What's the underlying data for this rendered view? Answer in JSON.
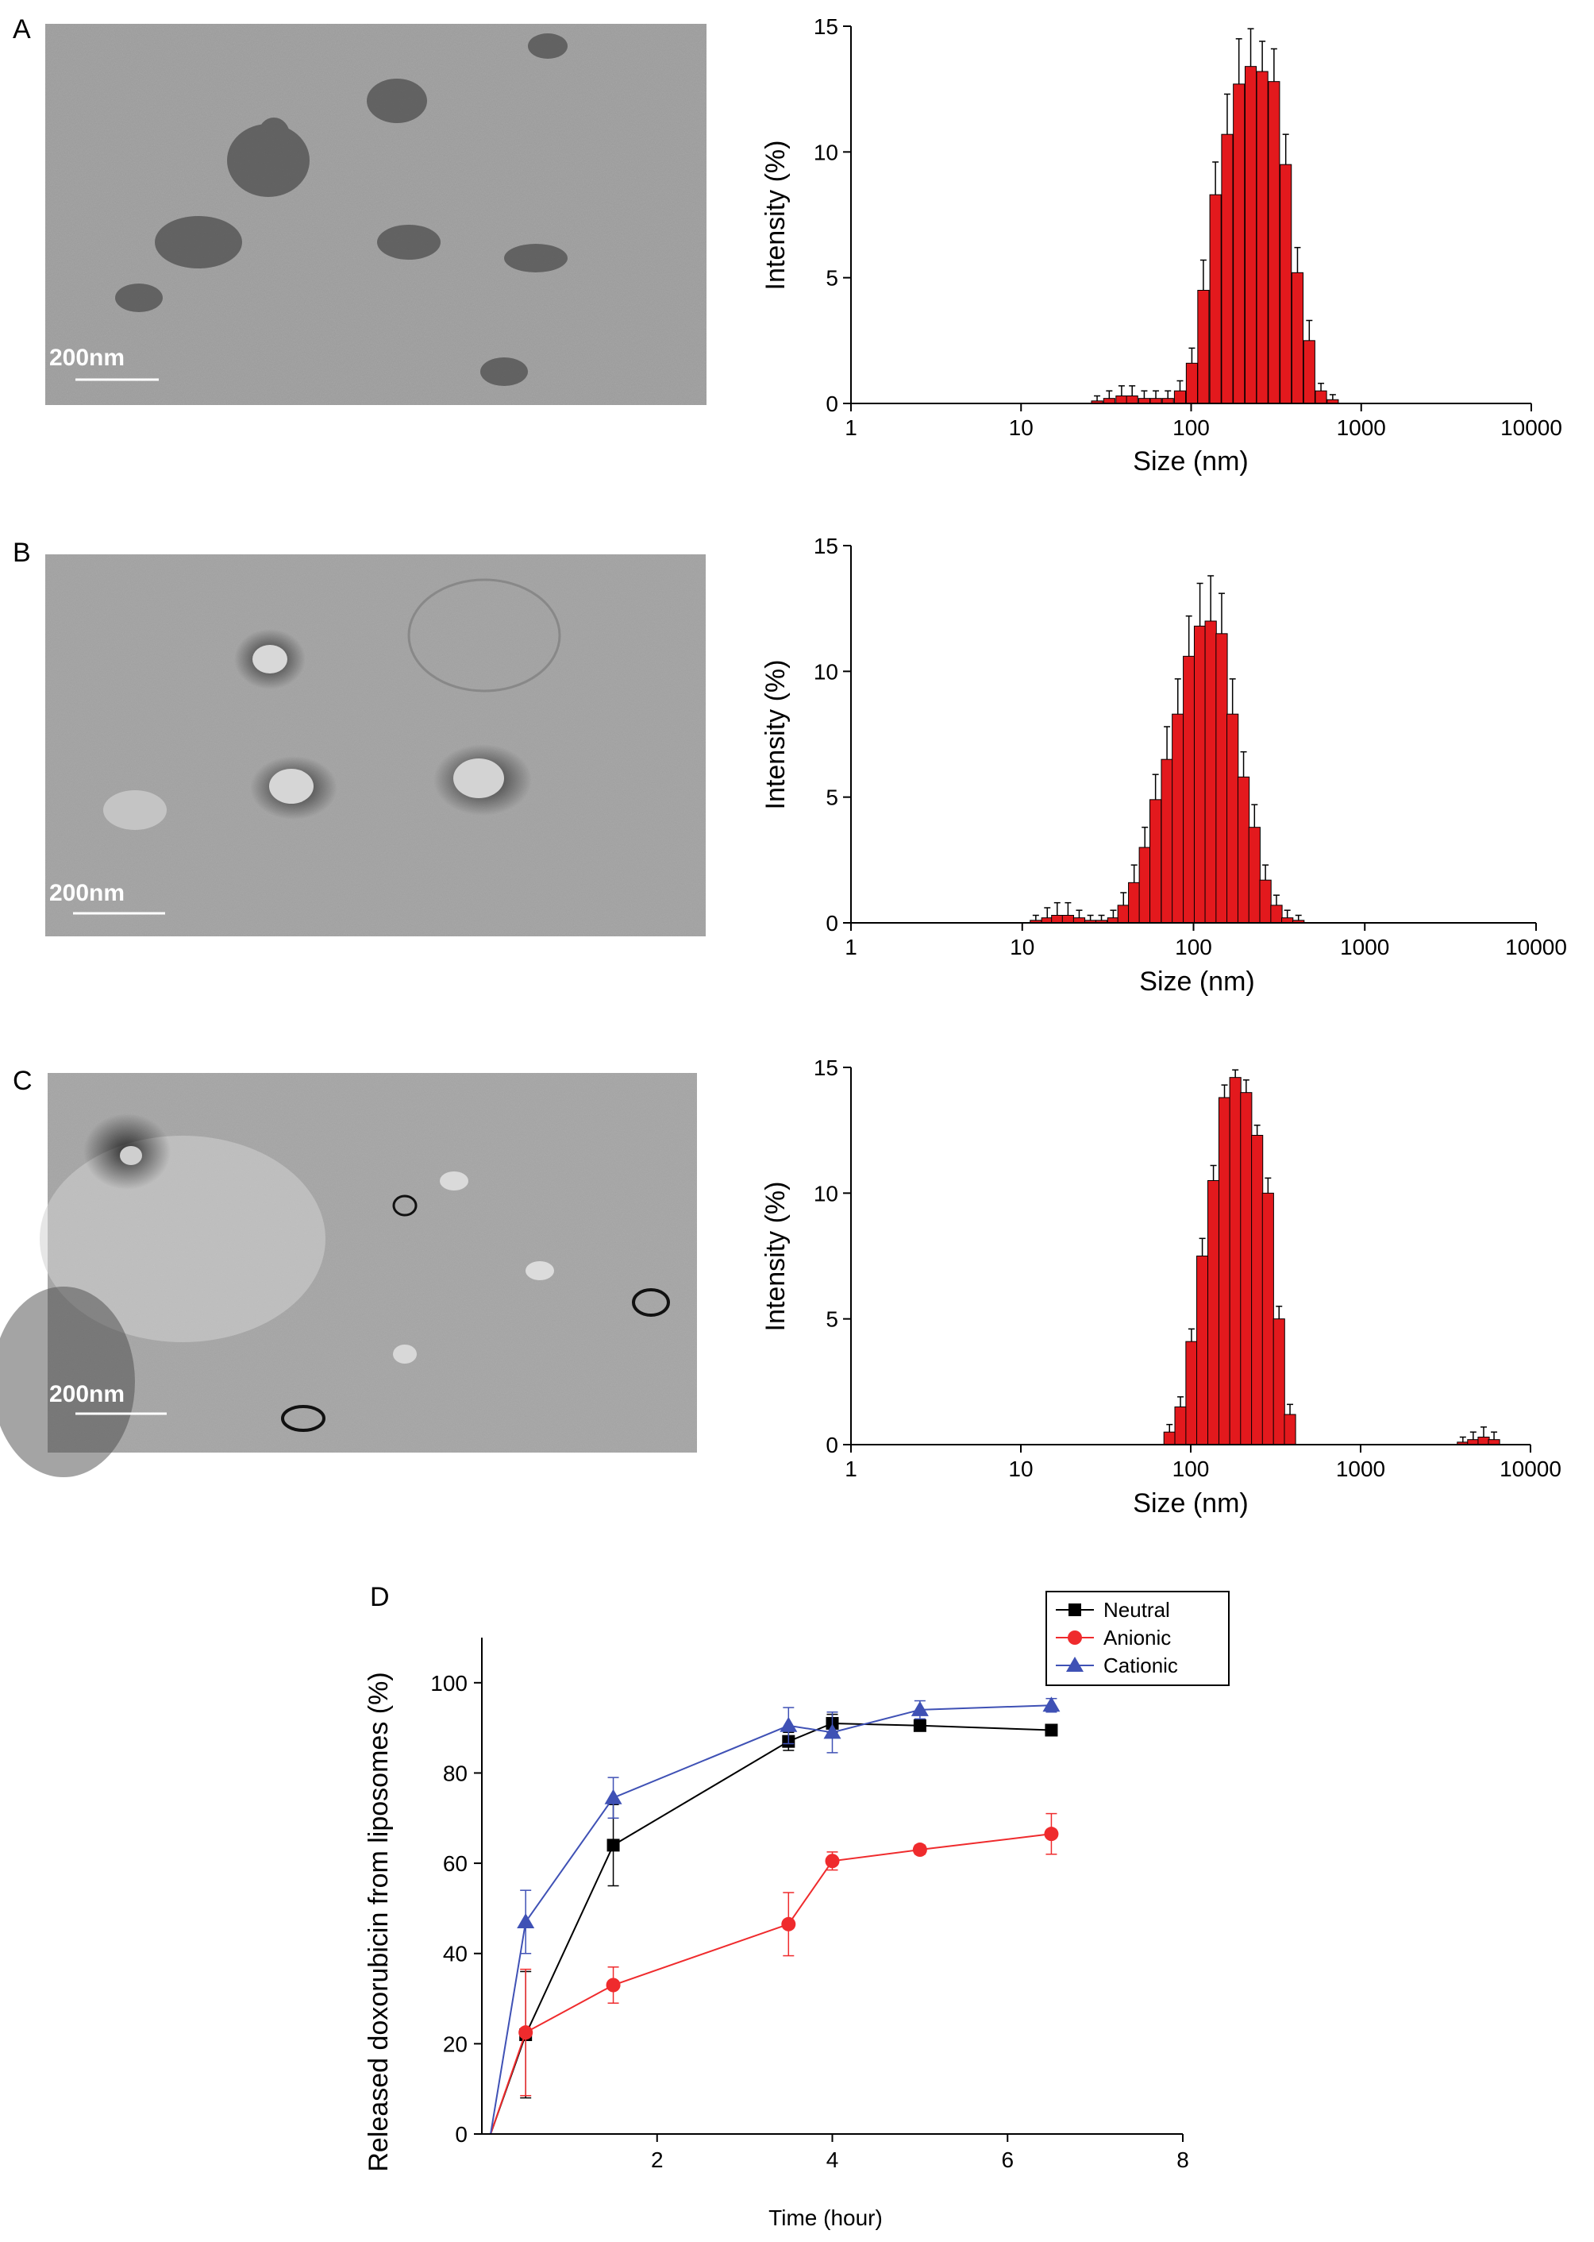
{
  "panels": {
    "A": {
      "label": "A",
      "scale_bar": "200nm",
      "chart_data": {
        "type": "bar",
        "xscale": "log",
        "xlabel": "Size (nm)",
        "ylabel": "Intensity (%)",
        "xlim": [
          1,
          10000
        ],
        "ylim": [
          0,
          15
        ],
        "x_ticks": [
          "1",
          "10",
          "100",
          "1000",
          "10000"
        ],
        "y_ticks": [
          "0",
          "5",
          "10",
          "15"
        ],
        "bar_color": "#e3191d",
        "x": [
          28,
          33,
          39,
          45,
          53,
          62,
          73,
          86,
          101,
          118,
          139,
          163,
          191,
          224,
          262,
          307,
          360,
          422,
          495,
          580,
          680
        ],
        "values": [
          0.1,
          0.2,
          0.3,
          0.3,
          0.2,
          0.2,
          0.2,
          0.5,
          1.6,
          4.5,
          8.3,
          10.7,
          12.7,
          13.4,
          13.2,
          12.8,
          9.5,
          5.2,
          2.5,
          0.5,
          0.15
        ],
        "errors": [
          0.2,
          0.3,
          0.4,
          0.4,
          0.3,
          0.3,
          0.3,
          0.4,
          0.6,
          1.2,
          1.3,
          1.6,
          1.8,
          1.5,
          1.2,
          1.3,
          1.2,
          1.0,
          0.8,
          0.3,
          0.2
        ]
      }
    },
    "B": {
      "label": "B",
      "scale_bar": "200nm",
      "chart_data": {
        "type": "bar",
        "xscale": "log",
        "xlabel": "Size (nm)",
        "ylabel": "Intensity (%)",
        "xlim": [
          1,
          10000
        ],
        "ylim": [
          0,
          15
        ],
        "x_ticks": [
          "1",
          "10",
          "100",
          "1000",
          "10000"
        ],
        "y_ticks": [
          "0",
          "5",
          "10",
          "15"
        ],
        "bar_color": "#e3191d",
        "x": [
          12,
          14,
          16,
          18.5,
          21.5,
          25,
          29,
          34,
          39,
          45,
          52,
          60,
          70,
          81,
          94,
          109,
          126,
          146,
          169,
          196,
          227,
          263,
          305,
          353,
          410
        ],
        "values": [
          0.1,
          0.2,
          0.3,
          0.3,
          0.2,
          0.1,
          0.1,
          0.2,
          0.7,
          1.6,
          3.0,
          4.9,
          6.5,
          8.3,
          10.6,
          11.8,
          12.0,
          11.5,
          8.3,
          5.8,
          3.8,
          1.7,
          0.7,
          0.2,
          0.1
        ],
        "errors": [
          0.2,
          0.4,
          0.5,
          0.5,
          0.3,
          0.2,
          0.2,
          0.3,
          0.5,
          0.7,
          0.8,
          1.0,
          1.3,
          1.4,
          1.6,
          1.7,
          1.8,
          1.6,
          1.4,
          1.0,
          0.9,
          0.6,
          0.4,
          0.3,
          0.2
        ]
      }
    },
    "C": {
      "label": "C",
      "scale_bar": "200nm",
      "chart_data": {
        "type": "bar",
        "xscale": "log",
        "xlabel": "Size (nm)",
        "ylabel": "Intensity (%)",
        "xlim": [
          1,
          10000
        ],
        "ylim": [
          0,
          15
        ],
        "x_ticks": [
          "1",
          "10",
          "100",
          "1000",
          "10000"
        ],
        "y_ticks": [
          "0",
          "5",
          "10",
          "15"
        ],
        "bar_color": "#e3191d",
        "x": [
          75,
          87,
          101,
          117,
          136,
          158,
          183,
          212,
          246,
          285,
          331,
          384,
          4000,
          4600,
          5300,
          6100
        ],
        "values": [
          0.5,
          1.5,
          4.1,
          7.5,
          10.5,
          13.8,
          14.6,
          14.0,
          12.3,
          10.0,
          5.0,
          1.2,
          0.1,
          0.2,
          0.3,
          0.2
        ],
        "errors": [
          0.3,
          0.4,
          0.5,
          0.7,
          0.6,
          0.5,
          0.3,
          0.5,
          0.4,
          0.6,
          0.5,
          0.4,
          0.2,
          0.3,
          0.4,
          0.3
        ]
      }
    },
    "D": {
      "label": "D",
      "chart_data": {
        "type": "line",
        "xlabel": "Time (hour)",
        "ylabel": "Released doxorubicin from liposomes (%)",
        "xlim": [
          0,
          8
        ],
        "ylim": [
          0,
          110
        ],
        "x_ticks": [
          "2",
          "4",
          "6",
          "8"
        ],
        "y_ticks": [
          "0",
          "20",
          "40",
          "60",
          "80",
          "100"
        ],
        "legend_position": "top-right",
        "series": [
          {
            "name": "Neutral",
            "color": "#000000",
            "marker": "square",
            "points": [
              [
                0.1,
                0
              ],
              [
                0.5,
                22
              ],
              [
                1.5,
                64
              ],
              [
                3.5,
                87
              ],
              [
                4,
                91
              ],
              [
                5,
                90.5
              ],
              [
                6.5,
                89.5
              ]
            ],
            "errors": [
              0,
              14,
              9,
              2,
              2,
              1,
              1
            ]
          },
          {
            "name": "Anionic",
            "color": "#ef2b2d",
            "marker": "circle",
            "points": [
              [
                0.1,
                0
              ],
              [
                0.5,
                22.5
              ],
              [
                1.5,
                33
              ],
              [
                3.5,
                46.5
              ],
              [
                4,
                60.5
              ],
              [
                5,
                63
              ],
              [
                6.5,
                66.5
              ]
            ],
            "errors": [
              0,
              14,
              4,
              7,
              2,
              1,
              4.5
            ]
          },
          {
            "name": "Cationic",
            "color": "#3f51b5",
            "marker": "triangle",
            "points": [
              [
                0.1,
                0
              ],
              [
                0.5,
                47
              ],
              [
                1.5,
                74.5
              ],
              [
                3.5,
                90.5
              ],
              [
                4,
                89
              ],
              [
                5,
                94
              ],
              [
                6.5,
                95
              ]
            ],
            "errors": [
              0,
              7,
              4.5,
              4,
              4.5,
              2,
              1.5
            ]
          }
        ]
      }
    }
  }
}
